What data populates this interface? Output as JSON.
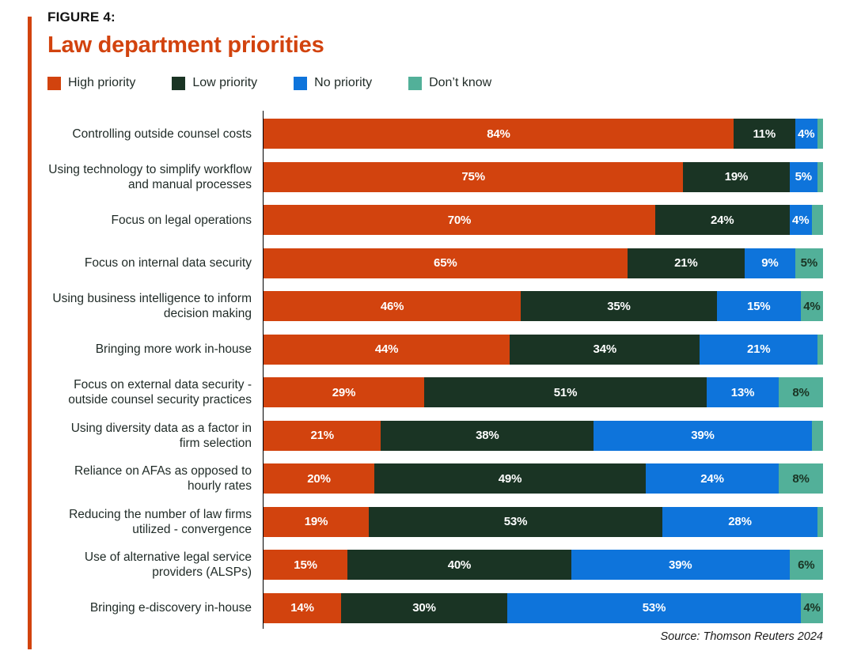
{
  "figure": {
    "kicker": "FIGURE 4:",
    "title": "Law department priorities",
    "source": "Source: Thomson Reuters 2024"
  },
  "colors": {
    "accent_line": "#d2430e",
    "title_text": "#d2430e",
    "axis_line": "#000000",
    "body_text": "#1f2a26",
    "high_priority": "#d2430e",
    "low_priority": "#1a3424",
    "no_priority": "#0e74db",
    "dont_know": "#52b099"
  },
  "legend": {
    "items": [
      {
        "label": "High priority",
        "color": "#d2430e"
      },
      {
        "label": "Low priority",
        "color": "#1a3424"
      },
      {
        "label": "No priority",
        "color": "#0e74db"
      },
      {
        "label": "Don’t know",
        "color": "#52b099"
      }
    ]
  },
  "chart_data": {
    "type": "bar",
    "orientation": "horizontal",
    "stacked": true,
    "value_unit": "percent",
    "xlim": [
      0,
      100
    ],
    "grid": false,
    "legend_position": "top",
    "title": "Law department priorities",
    "categories": [
      "Controlling outside counsel costs",
      "Using technology to simplify workflow and manual processes",
      "Focus on legal operations",
      "Focus on internal data security",
      "Using business intelligence to inform decision making",
      "Bringing more work in-house",
      "Focus on external data security - outside counsel security practices",
      "Using diversity data as a factor in firm selection",
      "Reliance on AFAs as opposed to hourly rates",
      "Reducing the number of law firms utilized - convergence",
      "Use of alternative legal service providers (ALSPs)",
      "Bringing e-discovery in-house"
    ],
    "series": [
      {
        "name": "High priority",
        "color": "#d2430e",
        "values": [
          84,
          75,
          70,
          65,
          46,
          44,
          29,
          21,
          20,
          19,
          15,
          14
        ],
        "labels": [
          "84%",
          "75%",
          "70%",
          "65%",
          "46%",
          "44%",
          "29%",
          "21%",
          "20%",
          "19%",
          "15%",
          "14%"
        ]
      },
      {
        "name": "Low priority",
        "color": "#1a3424",
        "values": [
          11,
          19,
          24,
          21,
          35,
          34,
          51,
          38,
          49,
          53,
          40,
          30
        ],
        "labels": [
          "11%",
          "19%",
          "24%",
          "21%",
          "35%",
          "34%",
          "51%",
          "38%",
          "49%",
          "53%",
          "40%",
          "30%"
        ]
      },
      {
        "name": "No priority",
        "color": "#0e74db",
        "values": [
          4,
          5,
          4,
          9,
          15,
          21,
          13,
          39,
          24,
          28,
          39,
          53
        ],
        "labels": [
          "4%",
          "5%",
          "4%",
          "9%",
          "15%",
          "21%",
          "13%",
          "39%",
          "24%",
          "28%",
          "39%",
          "53%"
        ]
      },
      {
        "name": "Don't know",
        "color": "#52b099",
        "values": [
          1,
          1,
          2,
          5,
          4,
          1,
          8,
          2,
          8,
          1,
          6,
          4
        ],
        "labels": [
          "",
          "",
          "",
          "5%",
          "4%",
          "",
          "8%",
          "",
          "8%",
          "",
          "6%",
          "4%"
        ]
      }
    ]
  }
}
